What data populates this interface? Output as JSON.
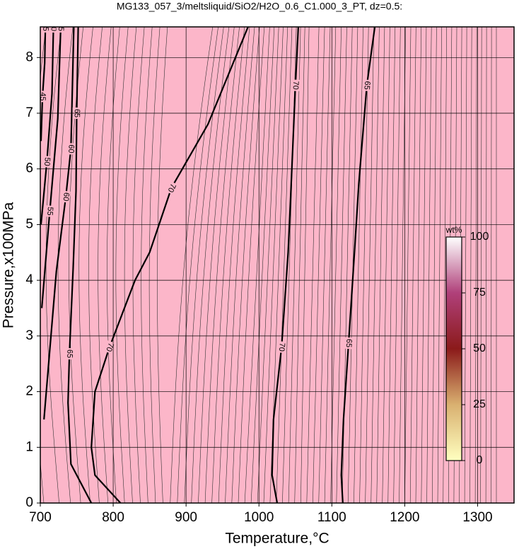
{
  "chart_data": {
    "type": "contour",
    "title": "MG133_057_3/meltsliquid/SiO2/H2O_0.6_C1.000_3_PT, dz=0.5:",
    "x_label": "Temperature,°C",
    "y_label": "Pressure,x100MPa",
    "xlim": [
      700,
      1350
    ],
    "ylim": [
      0,
      8.55
    ],
    "xticks": [
      700,
      800,
      900,
      1000,
      1100,
      1200,
      1300
    ],
    "yticks": [
      0,
      1,
      2,
      3,
      4,
      5,
      6,
      7,
      8
    ],
    "grid": true,
    "background": "#fcb6c9",
    "contours": [
      {
        "level": 45,
        "x": [
          701,
          703,
          706,
          707
        ],
        "y": [
          6.5,
          7.3,
          7.9,
          8.55
        ]
      },
      {
        "level": 50,
        "x": [
          701,
          709,
          716,
          718
        ],
        "y": [
          5,
          6.13,
          7.35,
          8.55
        ]
      },
      {
        "level": 55,
        "x": [
          702,
          713,
          724,
          728
        ],
        "y": [
          3.5,
          5.24,
          6.9,
          8.55
        ]
      },
      {
        "level": 60,
        "x": [
          705,
          722,
          735,
          742,
          746
        ],
        "y": [
          1.5,
          4.16,
          5.5,
          6.36,
          8.55
        ]
      },
      {
        "level": 65,
        "x": [
          770,
          742,
          738,
          740,
          745,
          749,
          750,
          752
        ],
        "y": [
          0,
          0.7,
          1.8,
          2.68,
          4.2,
          5.6,
          7,
          8.55
        ]
      },
      {
        "level": 70,
        "x": [
          810,
          775,
          770,
          775,
          795,
          830,
          850,
          880,
          930,
          985
        ],
        "y": [
          0,
          0.5,
          1,
          2,
          2.8,
          4,
          4.5,
          5.66,
          6.8,
          8.55
        ]
      },
      {
        "level": 70,
        "x": [
          1025,
          1018,
          1020,
          1031,
          1040,
          1044,
          1050,
          1054
        ],
        "y": [
          0,
          0.5,
          1.5,
          2.8,
          4.5,
          5.66,
          7.5,
          8.55
        ]
      },
      {
        "level": 65,
        "x": [
          1115,
          1113,
          1116,
          1123,
          1131,
          1137,
          1148,
          1159
        ],
        "y": [
          0,
          0.5,
          1.5,
          2.87,
          4.5,
          5.73,
          7.5,
          8.55
        ]
      }
    ],
    "colorbar": {
      "label": "wt%",
      "lim": [
        0,
        100
      ],
      "ticks": [
        0,
        25,
        50,
        75,
        100
      ],
      "colors": [
        "#ffffc0",
        "#d9b070",
        "#8b1a1a",
        "#b0407a",
        "#ffffff"
      ]
    }
  }
}
